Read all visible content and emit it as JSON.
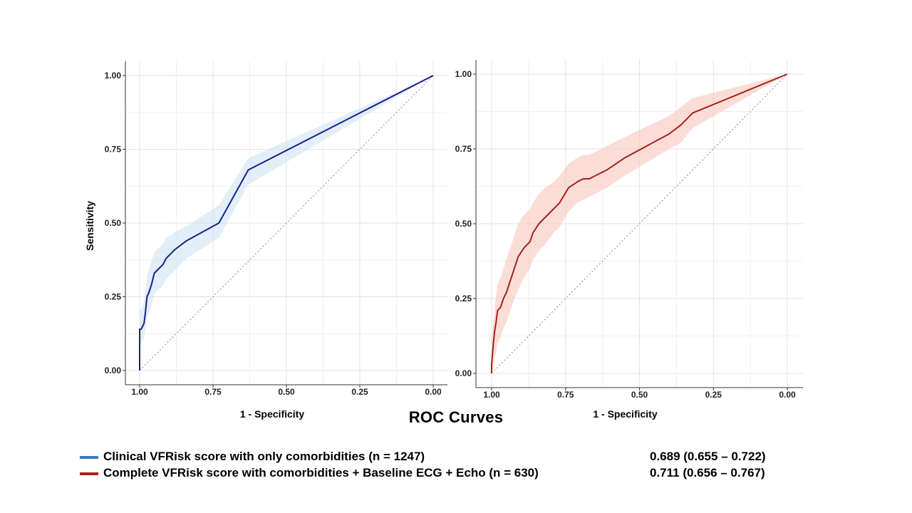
{
  "figure_title": "ROC Curves",
  "chart_data": [
    {
      "type": "line",
      "panel": "left",
      "xlabel": "1 - Specificity",
      "ylabel": "Sensitivity",
      "x_reversed": true,
      "xlim": [
        1.0,
        0.0
      ],
      "ylim": [
        0.0,
        1.0
      ],
      "x_ticks": [
        "1.00",
        "0.75",
        "0.50",
        "0.25",
        "0.00"
      ],
      "y_ticks": [
        "0.00",
        "0.25",
        "0.50",
        "0.75",
        "1.00"
      ],
      "grid": true,
      "diagonal_reference": true,
      "series": [
        {
          "name": "Clinical VFRisk score with only comorbidities (n = 1247)",
          "color": "#1a1f8c",
          "band_color": "#cfe2f3",
          "x": [
            1.0,
            1.0,
            1.0,
            0.995,
            0.99,
            0.985,
            0.98,
            0.975,
            0.97,
            0.96,
            0.95,
            0.94,
            0.92,
            0.91,
            0.89,
            0.88,
            0.84,
            0.73,
            0.63,
            0.0
          ],
          "y": [
            0.0,
            0.06,
            0.14,
            0.14,
            0.15,
            0.16,
            0.2,
            0.25,
            0.26,
            0.29,
            0.33,
            0.34,
            0.36,
            0.38,
            0.4,
            0.41,
            0.44,
            0.5,
            0.68,
            1.0
          ],
          "lower": [
            0.0,
            0.02,
            0.08,
            0.09,
            0.1,
            0.11,
            0.14,
            0.18,
            0.19,
            0.22,
            0.26,
            0.27,
            0.29,
            0.31,
            0.33,
            0.34,
            0.38,
            0.45,
            0.63,
            1.0
          ],
          "upper": [
            0.0,
            0.12,
            0.2,
            0.21,
            0.22,
            0.24,
            0.27,
            0.32,
            0.34,
            0.37,
            0.4,
            0.41,
            0.43,
            0.45,
            0.46,
            0.47,
            0.49,
            0.56,
            0.72,
            1.0
          ]
        }
      ]
    },
    {
      "type": "line",
      "panel": "right",
      "xlabel": "1 - Specificity",
      "ylabel": "",
      "x_reversed": true,
      "xlim": [
        1.0,
        0.0
      ],
      "ylim": [
        0.0,
        1.0
      ],
      "x_ticks": [
        "1.00",
        "0.75",
        "0.50",
        "0.25",
        "0.00"
      ],
      "y_ticks": [
        "0.00",
        "0.25",
        "0.50",
        "0.75",
        "1.00"
      ],
      "grid": true,
      "diagonal_reference": true,
      "series": [
        {
          "name": "Complete VFRisk score with comorbidities + Baseline ECG + Echo (n = 630)",
          "color": "#a8201a",
          "band_color": "#f9c7bd",
          "x": [
            1.0,
            1.0,
            0.995,
            0.99,
            0.985,
            0.98,
            0.97,
            0.96,
            0.95,
            0.94,
            0.93,
            0.91,
            0.89,
            0.87,
            0.86,
            0.84,
            0.82,
            0.79,
            0.77,
            0.74,
            0.71,
            0.69,
            0.67,
            0.61,
            0.55,
            0.4,
            0.36,
            0.32,
            0.0
          ],
          "y": [
            0.0,
            0.03,
            0.09,
            0.14,
            0.17,
            0.21,
            0.22,
            0.25,
            0.27,
            0.3,
            0.33,
            0.39,
            0.42,
            0.44,
            0.47,
            0.5,
            0.52,
            0.55,
            0.57,
            0.62,
            0.64,
            0.65,
            0.65,
            0.68,
            0.72,
            0.8,
            0.83,
            0.87,
            1.0
          ],
          "lower": [
            0.0,
            0.0,
            0.02,
            0.05,
            0.07,
            0.1,
            0.12,
            0.15,
            0.17,
            0.2,
            0.23,
            0.28,
            0.32,
            0.35,
            0.38,
            0.41,
            0.43,
            0.47,
            0.49,
            0.54,
            0.57,
            0.58,
            0.59,
            0.62,
            0.66,
            0.75,
            0.77,
            0.82,
            1.0
          ],
          "upper": [
            0.0,
            0.09,
            0.16,
            0.22,
            0.26,
            0.3,
            0.32,
            0.35,
            0.38,
            0.41,
            0.44,
            0.5,
            0.53,
            0.55,
            0.57,
            0.6,
            0.62,
            0.64,
            0.66,
            0.7,
            0.72,
            0.73,
            0.73,
            0.76,
            0.79,
            0.86,
            0.89,
            0.92,
            1.0
          ]
        }
      ]
    }
  ],
  "legend": [
    {
      "label": "Clinical VFRisk score with only comorbidities (n = 1247)",
      "value": "0.689 (0.655 – 0.722)",
      "color": "#3a7ab8"
    },
    {
      "label": "Complete VFRisk score with comorbidities + Baseline ECG + Echo (n = 630)",
      "value": "0.711 (0.656 – 0.767)",
      "color": "#a8201a"
    }
  ]
}
